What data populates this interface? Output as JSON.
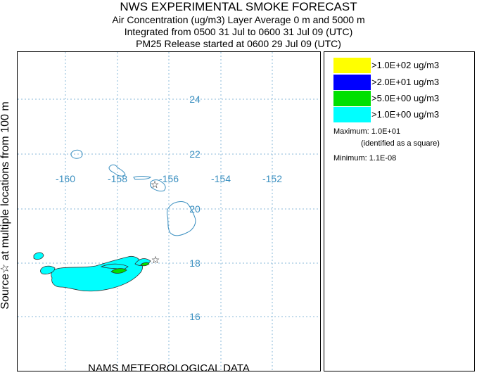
{
  "header": {
    "title": "NWS EXPERIMENTAL SMOKE FORECAST",
    "line2": "Air Concentration (ug/m3) Layer Average    0 m and  5000 m",
    "line3": "Integrated from 0500 31 Jul to 0600 31 Jul 09 (UTC)",
    "line4": "PM25 Release started at 0600 29 Jul 09 (UTC)"
  },
  "side_label": "Source☆ at multiple locations      from  100 m",
  "footer": "NAMS METEOROLOGICAL DATA",
  "map": {
    "lon_labels": [
      "-160",
      "-158",
      "-156",
      "-154",
      "-152"
    ],
    "lat_labels": [
      "24",
      "22",
      "20",
      "18",
      "16"
    ],
    "grid_color": "#8ab8d8",
    "label_color": "#3a8fc0",
    "coast_color": "#3a8fc0",
    "source_marker": "star-icon"
  },
  "legend": {
    "items": [
      {
        "label": ">1.0E+02 ug/m3",
        "color": "#ffff00"
      },
      {
        "label": ">2.0E+01 ug/m3",
        "color": "#0000ff"
      },
      {
        "label": ">5.0E+00 ug/m3",
        "color": "#00e000"
      },
      {
        "label": ">1.0E+00 ug/m3",
        "color": "#00ffff"
      }
    ],
    "maximum": "Maximum: 1.0E+01",
    "maximum_note": "(identified as a square)",
    "minimum": "Minimum: 1.1E-08"
  }
}
